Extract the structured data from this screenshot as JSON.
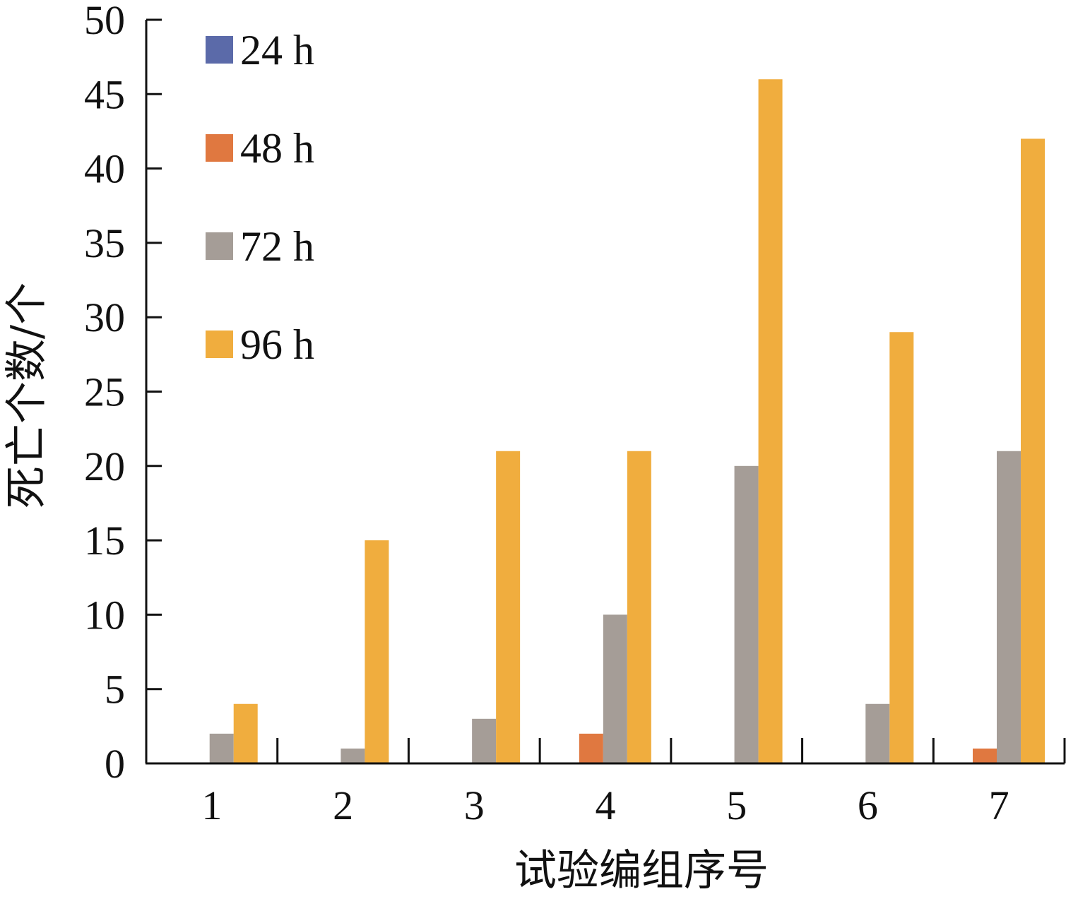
{
  "chart_data": {
    "type": "bar",
    "title": "",
    "xlabel": "试验编组序号",
    "ylabel": "死亡个数/个",
    "categories": [
      "1",
      "2",
      "3",
      "4",
      "5",
      "6",
      "7"
    ],
    "ylim": [
      0,
      50
    ],
    "yticks": [
      "0",
      "5",
      "10",
      "15",
      "20",
      "25",
      "30",
      "35",
      "40",
      "45",
      "50"
    ],
    "grid": false,
    "legend_position": "top-left",
    "series": [
      {
        "name": "24 h",
        "color": "#5b6aa9",
        "values": [
          0,
          0,
          0,
          0,
          0,
          0,
          0
        ]
      },
      {
        "name": "48 h",
        "color": "#e07840",
        "values": [
          0,
          0,
          0,
          2,
          0,
          0,
          1
        ]
      },
      {
        "name": "72 h",
        "color": "#a59d97",
        "values": [
          2,
          1,
          3,
          10,
          20,
          4,
          21
        ]
      },
      {
        "name": "96 h",
        "color": "#f0ad3e",
        "values": [
          4,
          15,
          21,
          21,
          46,
          29,
          42
        ]
      }
    ]
  }
}
